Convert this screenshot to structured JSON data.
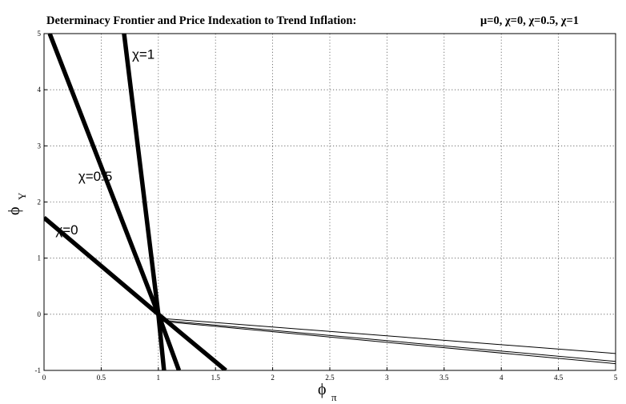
{
  "chart_data": {
    "type": "line",
    "title": "Determinacy Frontier and Price Indexation to Trend Inflation:",
    "subtitle": "μ=0, χ=0, χ=0.5, χ=1",
    "xlabel": "ϕ",
    "xlabel_sub": "π",
    "ylabel": "ϕ",
    "ylabel_sub": "Y",
    "xlim": [
      0,
      5
    ],
    "ylim": [
      -1,
      5
    ],
    "grid": true,
    "xticks": [
      0,
      0.5,
      1,
      1.5,
      2,
      2.5,
      3,
      3.5,
      4,
      4.5,
      5
    ],
    "xtick_labels": [
      "0",
      "0.5",
      "1",
      "1.5",
      "2",
      "2.5",
      "3",
      "3.5",
      "4",
      "4.5",
      "5"
    ],
    "yticks": [
      -1,
      0,
      1,
      2,
      3,
      4,
      5
    ],
    "ytick_labels": [
      "-1",
      "0",
      "1",
      "2",
      "3",
      "4",
      "5"
    ],
    "series": [
      {
        "name": "χ=0",
        "style": "thick",
        "x": [
          0,
          1,
          1.59
        ],
        "y": [
          1.72,
          0,
          -1
        ]
      },
      {
        "name": "χ=0.5",
        "style": "thick",
        "x": [
          0.05,
          1,
          1.18
        ],
        "y": [
          5,
          0,
          -1
        ]
      },
      {
        "name": "χ=1",
        "style": "thick",
        "x": [
          0.7,
          1,
          1.05
        ],
        "y": [
          5,
          0,
          -1
        ]
      },
      {
        "name": "",
        "style": "thin",
        "x": [
          1,
          5
        ],
        "y": [
          -0.07,
          -0.7
        ]
      },
      {
        "name": "",
        "style": "thin",
        "x": [
          1,
          5
        ],
        "y": [
          -0.1,
          -0.84
        ]
      },
      {
        "name": "",
        "style": "thin",
        "x": [
          1,
          5
        ],
        "y": [
          -0.12,
          -0.88
        ]
      }
    ],
    "annotations": [
      {
        "text": "χ=1",
        "x": 0.77,
        "y": 4.55
      },
      {
        "text": "χ=0.5",
        "x": 0.3,
        "y": 2.38
      },
      {
        "text": "χ=0",
        "x": 0.1,
        "y": 1.42
      }
    ],
    "colors": {
      "line": "#000000",
      "grid": "#555555",
      "background": "#ffffff"
    }
  }
}
